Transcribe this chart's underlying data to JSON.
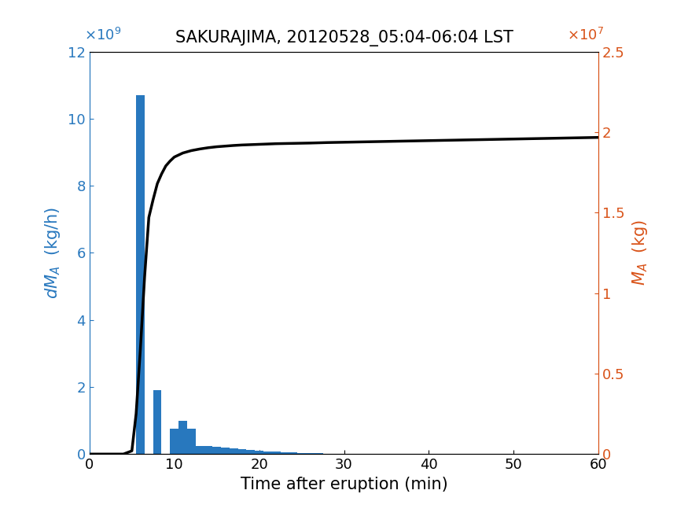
{
  "title": "SAKURAJIMA, 20120528_05:04-06:04 LST",
  "xlabel": "Time after eruption (min)",
  "bar_color": "#2878BE",
  "line_color": "#000000",
  "left_axis_color": "#2878BE",
  "right_axis_color": "#D95319",
  "xlim": [
    0,
    60
  ],
  "ylim_left": [
    0,
    12000000000.0
  ],
  "ylim_right": [
    0,
    25000000.0
  ],
  "bar_centers": [
    1,
    2,
    3,
    4,
    5,
    6,
    7,
    8,
    9,
    10,
    11,
    12,
    13,
    14,
    15,
    16,
    17,
    18,
    19,
    20,
    21,
    22,
    23,
    24,
    25,
    26,
    27,
    28,
    29,
    30,
    31,
    32,
    33,
    34,
    35,
    36,
    37,
    38,
    39,
    40,
    41,
    42,
    43,
    44,
    45,
    46,
    47,
    48,
    49,
    50,
    51,
    52,
    53,
    54,
    55,
    56,
    57,
    58,
    59,
    60
  ],
  "bar_heights": [
    0,
    0,
    0,
    0,
    0,
    10700000000.0,
    0,
    1900000000.0,
    0,
    750000000.0,
    1000000000.0,
    750000000.0,
    250000000.0,
    250000000.0,
    220000000.0,
    200000000.0,
    180000000.0,
    150000000.0,
    120000000.0,
    100000000.0,
    80000000.0,
    70000000.0,
    60000000.0,
    50000000.0,
    40000000.0,
    30000000.0,
    20000000.0,
    15000000.0,
    10000000.0,
    8000000.0,
    6000000.0,
    5000000.0,
    4000000.0,
    3000000.0,
    2000000.0,
    1500000.0,
    1000000.0,
    1000000.0,
    500000.0,
    500000.0,
    500000.0,
    500000.0,
    500000.0,
    500000.0,
    500000.0,
    500000.0,
    500000.0,
    500000.0,
    500000.0,
    500000.0,
    500000.0,
    500000.0,
    500000.0,
    500000.0,
    500000.0,
    500000.0,
    500000.0,
    500000.0,
    500000.0,
    500000.0
  ],
  "line_times": [
    0,
    1,
    2,
    3,
    4,
    5,
    5.5,
    6,
    6.5,
    7,
    7.5,
    8,
    8.5,
    9,
    9.5,
    10,
    11,
    12,
    13,
    14,
    15,
    16,
    17,
    18,
    19,
    20,
    22,
    24,
    26,
    28,
    30,
    32,
    34,
    36,
    38,
    40,
    42,
    44,
    46,
    48,
    50,
    52,
    54,
    56,
    58,
    60
  ],
  "line_values": [
    0,
    0,
    0,
    0,
    0,
    200000.0,
    2500000.0,
    6500000.0,
    11000000.0,
    14700000.0,
    15800000.0,
    16800000.0,
    17400000.0,
    17900000.0,
    18200000.0,
    18450000.0,
    18700000.0,
    18850000.0,
    18950000.0,
    19030000.0,
    19090000.0,
    19130000.0,
    19170000.0,
    19200000.0,
    19220000.0,
    19240000.0,
    19280000.0,
    19300000.0,
    19320000.0,
    19350000.0,
    19370000.0,
    19390000.0,
    19410000.0,
    19430000.0,
    19450000.0,
    19470000.0,
    19490000.0,
    19510000.0,
    19530000.0,
    19550000.0,
    19570000.0,
    19590000.0,
    19610000.0,
    19630000.0,
    19650000.0,
    19670000.0
  ],
  "xticks": [
    0,
    10,
    20,
    30,
    40,
    50,
    60
  ],
  "yticks_left": [
    0,
    2000000000.0,
    4000000000.0,
    6000000000.0,
    8000000000.0,
    10000000000.0,
    12000000000.0
  ],
  "yticks_right": [
    0,
    5000000.0,
    10000000.0,
    15000000.0,
    20000000.0,
    25000000.0
  ],
  "ytick_labels_left": [
    "0",
    "2",
    "4",
    "6",
    "8",
    "10",
    "12"
  ],
  "ytick_labels_right": [
    "0",
    "0.5",
    "1",
    "1.5",
    "2",
    "2.5"
  ]
}
